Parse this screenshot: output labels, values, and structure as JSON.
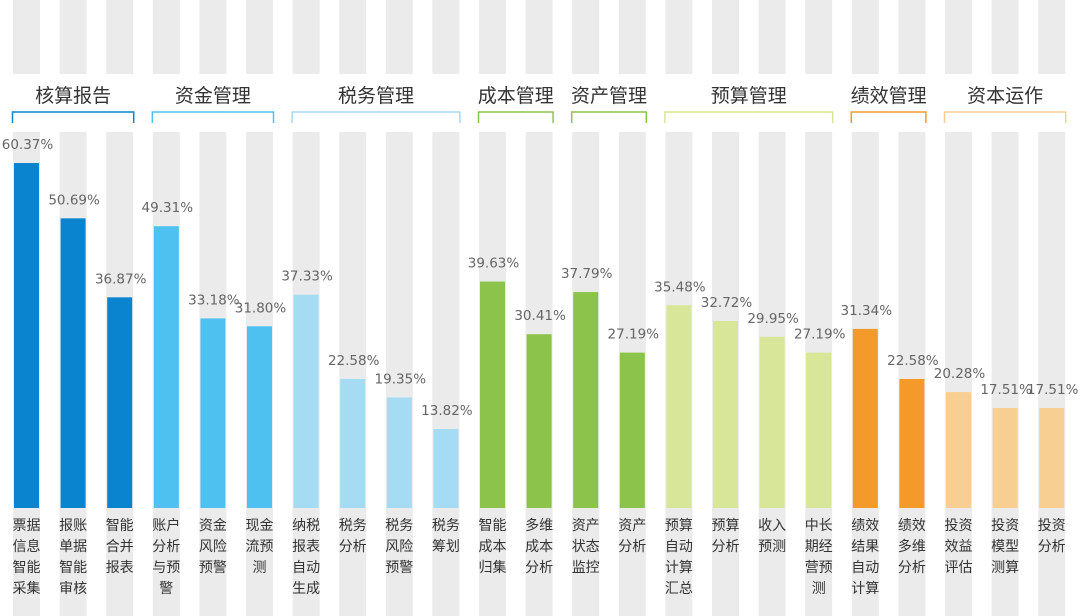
{
  "chart_data": {
    "type": "bar",
    "title": "",
    "xlabel": "",
    "ylabel": "",
    "ylim": [
      0,
      70
    ],
    "grid": false,
    "legend": "none",
    "groups": [
      {
        "name": "核算报告",
        "color": "#0a84cf",
        "start": 0,
        "count": 3
      },
      {
        "name": "资金管理",
        "color": "#4fc1f0",
        "start": 3,
        "count": 3
      },
      {
        "name": "税务管理",
        "color": "#a6dbf4",
        "start": 6,
        "count": 4
      },
      {
        "name": "成本管理",
        "color": "#8cc34a",
        "start": 10,
        "count": 2
      },
      {
        "name": "资产管理",
        "color": "#8cc34a",
        "start": 12,
        "count": 2
      },
      {
        "name": "预算管理",
        "color": "#d8e699",
        "start": 14,
        "count": 4
      },
      {
        "name": "绩效管理",
        "color": "#f39a2b",
        "start": 18,
        "count": 2
      },
      {
        "name": "资本运作",
        "color": "#f8cf93",
        "start": 20,
        "count": 3
      }
    ],
    "categories": [
      [
        "票据",
        "信息",
        "智能",
        "采集"
      ],
      [
        "报账",
        "单据",
        "智能",
        "审核"
      ],
      [
        "智能",
        "合并",
        "报表"
      ],
      [
        "账户",
        "分析",
        "与预",
        "警"
      ],
      [
        "资金",
        "风险",
        "预警"
      ],
      [
        "现金",
        "流预",
        "测"
      ],
      [
        "纳税",
        "报表",
        "自动",
        "生成"
      ],
      [
        "税务",
        "分析"
      ],
      [
        "税务",
        "风险",
        "预警"
      ],
      [
        "税务",
        "筹划"
      ],
      [
        "智能",
        "成本",
        "归集"
      ],
      [
        "多维",
        "成本",
        "分析"
      ],
      [
        "资产",
        "状态",
        "监控"
      ],
      [
        "资产",
        "分析"
      ],
      [
        "预算",
        "自动",
        "计算",
        "汇总"
      ],
      [
        "预算",
        "分析"
      ],
      [
        "收入",
        "预测"
      ],
      [
        "中长",
        "期经",
        "营预",
        "测"
      ],
      [
        "绩效",
        "结果",
        "自动",
        "计算"
      ],
      [
        "绩效",
        "多维",
        "分析"
      ],
      [
        "投资",
        "效益",
        "评估"
      ],
      [
        "投资",
        "模型",
        "测算"
      ],
      [
        "投资",
        "分析"
      ]
    ],
    "values": [
      60.37,
      50.69,
      36.87,
      49.31,
      33.18,
      31.8,
      37.33,
      22.58,
      19.35,
      13.82,
      39.63,
      30.41,
      37.79,
      27.19,
      35.48,
      32.72,
      29.95,
      27.19,
      31.34,
      22.58,
      20.28,
      17.51,
      17.51
    ],
    "value_labels": [
      "60.37%",
      "50.69%",
      "36.87%",
      "49.31%",
      "33.18%",
      "31.80%",
      "37.33%",
      "22.58%",
      "19.35%",
      "13.82%",
      "39.63%",
      "30.41%",
      "37.79%",
      "27.19%",
      "35.48%",
      "32.72%",
      "29.95%",
      "27.19%",
      "31.34%",
      "22.58%",
      "20.28%",
      "17.51%",
      "17.51%"
    ],
    "background_stripe_color": "#ebebeb"
  }
}
